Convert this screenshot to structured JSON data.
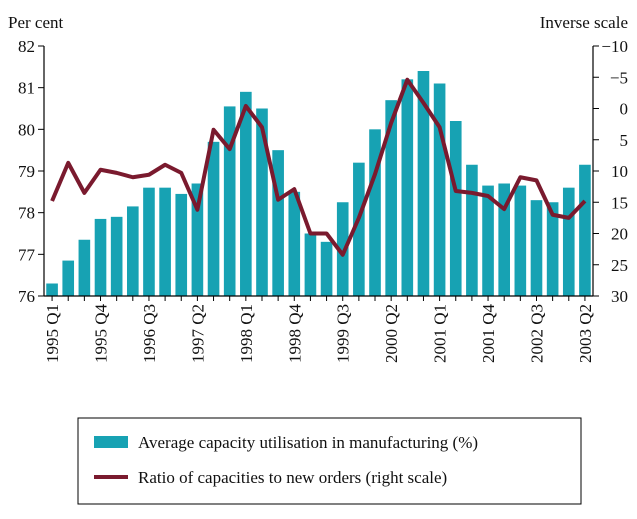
{
  "chart_data": {
    "type": "bar_line",
    "y_axis_label": "Per cent",
    "y2_axis_label": "Inverse scale",
    "categories": [
      "1995 Q1",
      null,
      null,
      "1995 Q4",
      null,
      null,
      "1996 Q3",
      null,
      null,
      "1997 Q2",
      null,
      null,
      "1998 Q1",
      null,
      null,
      "1998 Q4",
      null,
      null,
      "1999 Q3",
      null,
      null,
      "2000 Q2",
      null,
      null,
      "2001 Q1",
      null,
      null,
      "2001 Q4",
      null,
      null,
      "2002 Q3",
      null,
      null,
      "2003 Q2"
    ],
    "series": [
      {
        "name": "Average capacity utilisation in manufacturing (%)",
        "type": "bar",
        "color": "#17a2b3",
        "values": [
          76.3,
          76.85,
          77.35,
          77.85,
          77.9,
          78.15,
          78.6,
          78.6,
          78.45,
          78.7,
          79.7,
          80.55,
          80.9,
          80.5,
          79.5,
          78.5,
          77.5,
          77.3,
          78.25,
          79.2,
          80.0,
          80.7,
          81.2,
          81.4,
          81.1,
          80.2,
          79.15,
          78.65,
          78.7,
          78.65,
          78.3,
          78.25,
          78.6,
          79.15
        ]
      },
      {
        "name": "Ratio of capacities to new orders (right scale)",
        "type": "line",
        "axis": "y2",
        "color": "#7a1a2e",
        "values": [
          14.8,
          8.7,
          13.5,
          9.8,
          10.3,
          11,
          10.6,
          9,
          10.3,
          16.2,
          3.4,
          6.5,
          -0.4,
          3,
          14.6,
          12.9,
          20,
          20,
          23.4,
          17.5,
          10.5,
          2.3,
          -4.6,
          -0.9,
          3,
          13.2,
          13.5,
          14,
          16.1,
          11,
          11.5,
          17,
          17.5,
          14.8
        ]
      }
    ],
    "ylim": [
      76,
      82
    ],
    "yticks": [
      76,
      77,
      78,
      79,
      80,
      81,
      82
    ],
    "y2lim": [
      -10,
      30
    ],
    "y2_inverted": true,
    "y2ticks": [
      {
        "value": -10,
        "label": "−10"
      },
      {
        "value": -5,
        "label": "−5"
      },
      0,
      5,
      10,
      15,
      20,
      25,
      30
    ],
    "legend_position": "bottom"
  }
}
